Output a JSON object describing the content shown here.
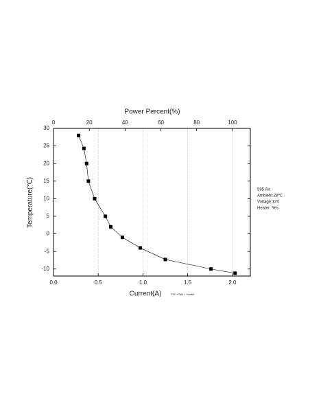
{
  "chart_data": {
    "type": "line",
    "x_label": "Current(A)",
    "x_label_note": "TEC+FAN + Heater",
    "x2_label": "Power Percent(%)",
    "y_label": "Temperature(℃)",
    "annotations": [
      "585 Air",
      "Ambient:28℃",
      "Voltage:12V",
      "Heater: Yes"
    ],
    "series": [
      {
        "name": "585 Air",
        "color": "#000000",
        "x": [
          0.28,
          0.34,
          0.37,
          0.39,
          0.46,
          0.58,
          0.64,
          0.77,
          0.97,
          1.25,
          1.76,
          2.03
        ],
        "values": [
          28,
          24.3,
          20,
          15,
          10,
          5,
          2,
          -1,
          -4,
          -7.3,
          -10,
          -11.2
        ]
      }
    ],
    "xlim": [
      0,
      2.2
    ],
    "xticks": [
      {
        "value": 0,
        "label": "0.0"
      },
      0.5,
      {
        "value": 1,
        "label": "1.0"
      },
      1.5,
      {
        "value": 2,
        "label": "2.0"
      }
    ],
    "x2lim": [
      0,
      110
    ],
    "x2ticks": [
      0,
      20,
      40,
      60,
      80,
      100
    ],
    "ylim": [
      -12,
      30
    ],
    "yticks": [
      30,
      25,
      20,
      15,
      10,
      5,
      0,
      -5,
      -10
    ],
    "grid": "x"
  }
}
